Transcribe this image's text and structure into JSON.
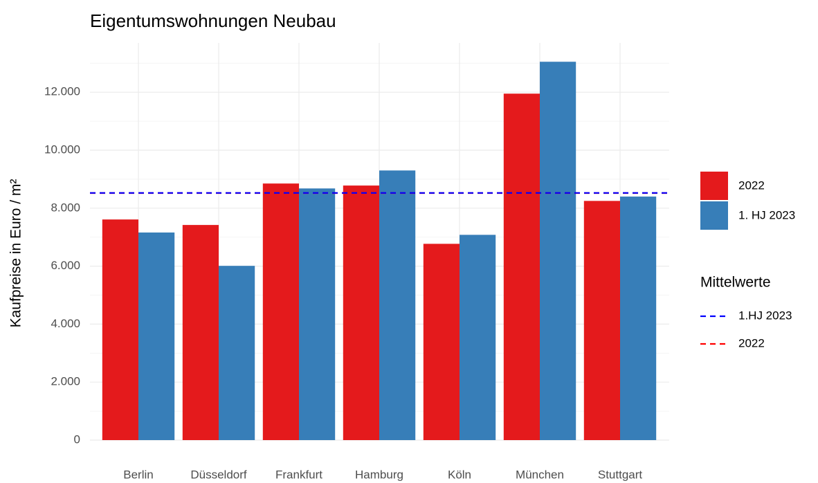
{
  "chart_data": {
    "type": "bar",
    "title": "Eigentumswohnungen Neubau",
    "y_label": "Kaufpreise in Euro / m²",
    "categories": [
      "Berlin",
      "Düsseldorf",
      "Frankfurt",
      "Hamburg",
      "Köln",
      "München",
      "Stuttgart"
    ],
    "series": [
      {
        "name": "2022",
        "color": "#e41a1c",
        "values": [
          7610,
          7420,
          8850,
          8780,
          6770,
          11950,
          8250
        ]
      },
      {
        "name": "1. HJ 2023",
        "color": "#377eb8",
        "values": [
          7160,
          6010,
          8680,
          9300,
          7080,
          13050,
          8400
        ]
      }
    ],
    "ylim": [
      0,
      13700
    ],
    "yticks": [
      0,
      {
        "value": 2000,
        "label": "2.000"
      },
      {
        "value": 4000,
        "label": "4.000"
      },
      {
        "value": 6000,
        "label": "6.000"
      },
      {
        "value": 8000,
        "label": "8.000"
      },
      {
        "value": 10000,
        "label": "10.000"
      },
      {
        "value": 12000,
        "label": "12.000"
      }
    ],
    "yminor": [
      1000,
      3000,
      5000,
      7000,
      9000,
      11000,
      13000
    ],
    "grid": true,
    "reference_lines": {
      "title": "Mittelwerte",
      "lines": [
        {
          "name": "1.HJ 2023",
          "color": "#0000ff",
          "value": 8525
        },
        {
          "name": "2022",
          "color": "#ff0000",
          "value": 8520
        }
      ]
    }
  }
}
